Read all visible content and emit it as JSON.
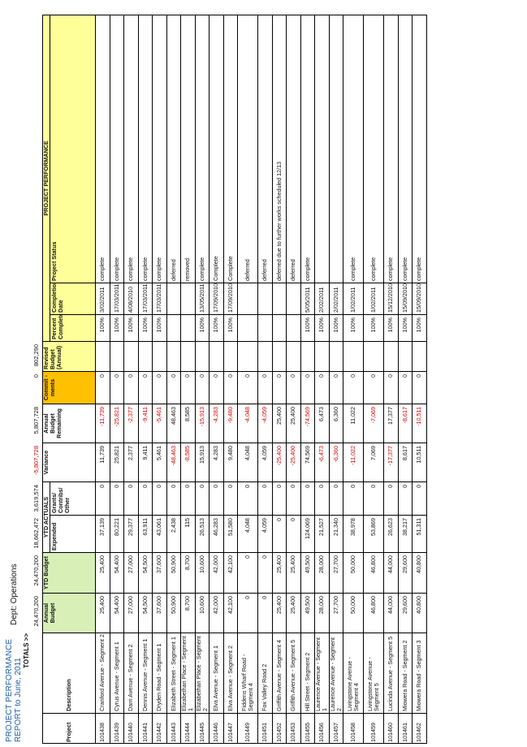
{
  "report": {
    "title_line1": "PROJECT PERFORMANCE",
    "title_line2": "REPORT to June, 2011",
    "department": "Dept: Operations"
  },
  "totals": {
    "label": "TOTALS >>",
    "annual_budget": "24,470,200",
    "ytd_budget": "24,470,200",
    "expended": "18,662,472",
    "grants": "3,619,574",
    "variance": "-5,807,728",
    "remaining": "5,807,728",
    "commitments": "0",
    "revised_budget": "802,290"
  },
  "headers": {
    "project": "Project",
    "description": "Description",
    "annual_budget": "Annual Budget",
    "ytd_budget": "YTD Budget",
    "ytd_actuals": "YTD ACTUALS",
    "expended": "Expended",
    "grants": "Grants/ Contribs/ Other",
    "variance": "Variance",
    "remaining": "Annual Budget Remaining",
    "commitments": "Commit -ments",
    "revised_budget": "Revised Budget (Annual)",
    "project_performance": "PROJECT PERFORMANCE",
    "percent_complete": "Percent Complete",
    "completion_date": "Completion Date",
    "project_status": "Project Status"
  },
  "rows": [
    {
      "project": "101438",
      "description": "Cranford Avenue - Segment 2",
      "annual_budget": "25,400",
      "ytd_budget": "25,400",
      "expended": "37,139",
      "grants": "0",
      "variance": "11,739",
      "remaining": "-11,739",
      "commitments": "0",
      "revised_budget": "",
      "percent": "100%",
      "date": "3/02/2011",
      "status": "complete"
    },
    {
      "project": "101439",
      "description": "Cyrus Avenue - Segment 1",
      "annual_budget": "54,400",
      "ytd_budget": "54,400",
      "expended": "80,221",
      "grants": "0",
      "variance": "25,821",
      "remaining": "-25,821",
      "commitments": "0",
      "revised_budget": "",
      "percent": "100%",
      "date": "17/03/2011",
      "status": "complete"
    },
    {
      "project": "101440",
      "description": "Darri Avenue - Segment 2",
      "annual_budget": "27,000",
      "ytd_budget": "27,000",
      "expended": "29,377",
      "grants": "0",
      "variance": "2,377",
      "remaining": "-2,377",
      "commitments": "0",
      "revised_budget": "",
      "percent": "100%",
      "date": "4/08/2010",
      "status": "complete"
    },
    {
      "project": "101441",
      "description": "Dennis Avenue - Segment 1",
      "annual_budget": "54,500",
      "ytd_budget": "54,500",
      "expended": "63,911",
      "grants": "0",
      "variance": "9,411",
      "remaining": "-9,411",
      "commitments": "0",
      "revised_budget": "",
      "percent": "100%",
      "date": "17/03/2011",
      "status": "complete"
    },
    {
      "project": "101442",
      "description": "Dryden Road - Segment 1",
      "annual_budget": "37,600",
      "ytd_budget": "37,600",
      "expended": "43,061",
      "grants": "0",
      "variance": "5,461",
      "remaining": "-5,461",
      "commitments": "0",
      "revised_budget": "",
      "percent": "100%",
      "date": "17/03/2011",
      "status": "complete"
    },
    {
      "project": "101443",
      "description": "Elizabeth Street - Segment 1",
      "annual_budget": "50,900",
      "ytd_budget": "50,900",
      "expended": "2,438",
      "grants": "0",
      "variance": "-48,463",
      "remaining": "48,463",
      "commitments": "0",
      "revised_budget": "",
      "percent": "",
      "date": "",
      "status": "deferred"
    },
    {
      "project": "101444",
      "description": "Elizabethan Place - Segment 1",
      "annual_budget": "8,700",
      "ytd_budget": "8,700",
      "expended": "115",
      "grants": "0",
      "variance": "-8,585",
      "remaining": "8,585",
      "commitments": "0",
      "revised_budget": "",
      "percent": "",
      "date": "",
      "status": "removed"
    },
    {
      "project": "101445",
      "description": "Elizabethan Place - Segment 2",
      "annual_budget": "10,600",
      "ytd_budget": "10,600",
      "expended": "26,513",
      "grants": "0",
      "variance": "15,913",
      "remaining": "-15,913",
      "commitments": "0",
      "revised_budget": "",
      "percent": "100%",
      "date": "13/05/2011",
      "status": "complete"
    },
    {
      "project": "101446",
      "description": "Elva Avenue - Segment 1",
      "annual_budget": "42,000",
      "ytd_budget": "42,000",
      "expended": "46,283",
      "grants": "0",
      "variance": "4,283",
      "remaining": "-4,283",
      "commitments": "0",
      "revised_budget": "",
      "percent": "100%",
      "date": "17/09/2010",
      "status": "Complete"
    },
    {
      "project": "101447",
      "description": "Elva Avenue - Segment 2",
      "annual_budget": "42,100",
      "ytd_budget": "42,100",
      "expended": "51,580",
      "grants": "0",
      "variance": "9,480",
      "remaining": "-9,480",
      "commitments": "0",
      "revised_budget": "",
      "percent": "100%",
      "date": "17/09/2010",
      "status": "Complete"
    },
    {
      "project": "101449",
      "description": "Fiddens Wharf Road - Segment 4",
      "annual_budget": "0",
      "ytd_budget": "0",
      "expended": "4,048",
      "grants": "0",
      "variance": "4,048",
      "remaining": "-4,048",
      "commitments": "0",
      "revised_budget": "",
      "percent": "",
      "date": "",
      "status": "deferred"
    },
    {
      "project": "101451",
      "description": "Fox Valley Road 2",
      "annual_budget": "0",
      "ytd_budget": "0",
      "expended": "4,059",
      "grants": "0",
      "variance": "4,059",
      "remaining": "-4,059",
      "commitments": "0",
      "revised_budget": "",
      "percent": "",
      "date": "",
      "status": "deferred"
    },
    {
      "project": "101452",
      "description": "Griffith Avenue - Segment 4",
      "annual_budget": "25,400",
      "ytd_budget": "25,400",
      "expended": "0",
      "grants": "0",
      "variance": "-25,400",
      "remaining": "25,400",
      "commitments": "0",
      "revised_budget": "",
      "percent": "",
      "date": "",
      "status": "deferred due to further works scheduled 12/13"
    },
    {
      "project": "101453",
      "description": "Griffith Avenue - Segment 5",
      "annual_budget": "25,400",
      "ytd_budget": "25,400",
      "expended": "0",
      "grants": "0",
      "variance": "-25,400",
      "remaining": "25,400",
      "commitments": "0",
      "revised_budget": "",
      "percent": "",
      "date": "",
      "status": "deferred"
    },
    {
      "project": "101455",
      "description": "Hill Street - Segment 2",
      "annual_budget": "49,500",
      "ytd_budget": "49,500",
      "expended": "124,069",
      "grants": "0",
      "variance": "74,569",
      "remaining": "-74,569",
      "commitments": "0",
      "revised_budget": "",
      "percent": "100%",
      "date": "5/05/2011",
      "status": "complete"
    },
    {
      "project": "101456",
      "description": "Laurence Avenue - Segment 1",
      "annual_budget": "28,000",
      "ytd_budget": "28,000",
      "expended": "21,527",
      "grants": "0",
      "variance": "-6,473",
      "remaining": "6,473",
      "commitments": "0",
      "revised_budget": "",
      "percent": "100%",
      "date": "2/02/2011",
      "status": ""
    },
    {
      "project": "101457",
      "description": "Laurence Avenue - Segment 2",
      "annual_budget": "27,700",
      "ytd_budget": "27,700",
      "expended": "21,340",
      "grants": "0",
      "variance": "-6,360",
      "remaining": "6,360",
      "commitments": "0",
      "revised_budget": "",
      "percent": "100%",
      "date": "2/02/2011",
      "status": ""
    },
    {
      "project": "101458",
      "description": "Livingstone Avenue - Segment 4",
      "annual_budget": "50,000",
      "ytd_budget": "50,000",
      "expended": "38,978",
      "grants": "0",
      "variance": "-11,022",
      "remaining": "11,022",
      "commitments": "0",
      "revised_budget": "",
      "percent": "100%",
      "date": "1/02/2011",
      "status": "complete"
    },
    {
      "project": "101459",
      "description": "Livingstone Avenue - Segment 5",
      "annual_budget": "46,800",
      "ytd_budget": "46,800",
      "expended": "53,869",
      "grants": "0",
      "variance": "7,069",
      "remaining": "-7,069",
      "commitments": "0",
      "revised_budget": "",
      "percent": "100%",
      "date": "1/02/2011",
      "status": "complete"
    },
    {
      "project": "101460",
      "description": "Lucinda Avenue - Segment 5",
      "annual_budget": "44,000",
      "ytd_budget": "44,000",
      "expended": "26,623",
      "grants": "0",
      "variance": "-17,377",
      "remaining": "17,377",
      "commitments": "0",
      "revised_budget": "",
      "percent": "100%",
      "date": "15/12/2010",
      "status": "complete"
    },
    {
      "project": "101461",
      "description": "Miowera Road - Segment 2",
      "annual_budget": "29,600",
      "ytd_budget": "29,600",
      "expended": "38,217",
      "grants": "0",
      "variance": "8,617",
      "remaining": "-8,617",
      "commitments": "0",
      "revised_budget": "",
      "percent": "100%",
      "date": "15/09/2010",
      "status": "complete"
    },
    {
      "project": "101462",
      "description": "Miowera Road - Segment 3",
      "annual_budget": "40,800",
      "ytd_budget": "40,800",
      "expended": "51,311",
      "grants": "0",
      "variance": "10,511",
      "remaining": "-10,511",
      "commitments": "0",
      "revised_budget": "",
      "percent": "100%",
      "date": "15/09/2010",
      "status": "complete"
    }
  ]
}
